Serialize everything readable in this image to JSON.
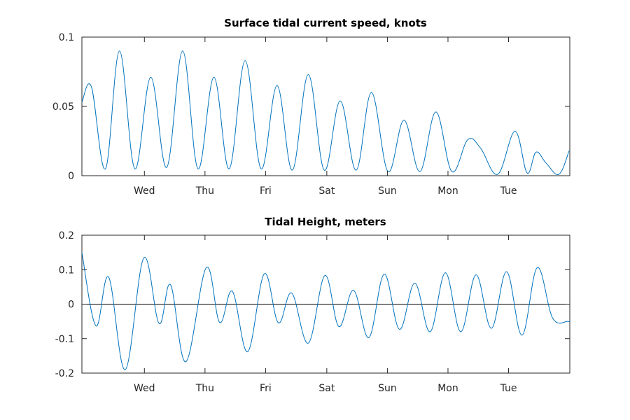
{
  "colors": {
    "series": "#0072bd",
    "axis": "#262626",
    "zero_line": "#000000"
  },
  "chart_data": [
    {
      "type": "line",
      "title": "Surface tidal current speed, knots",
      "xlabel": "",
      "ylabel": "",
      "xlim": [
        0,
        7.65
      ],
      "ylim": [
        0,
        0.1
      ],
      "x_ticks": [
        0.98,
        1.93,
        2.88,
        3.84,
        4.79,
        5.74,
        6.69
      ],
      "x_tick_labels": [
        "Wed",
        "Thu",
        "Fri",
        "Sat",
        "Sun",
        "Mon",
        "Tue"
      ],
      "y_ticks": [
        0,
        0.05,
        0.1
      ],
      "y_tick_labels": [
        "0",
        "0.05",
        "0.1"
      ],
      "grid": false,
      "series": [
        {
          "x": [
            0.0,
            0.15,
            0.37,
            0.59,
            0.83,
            1.08,
            1.33,
            1.58,
            1.82,
            2.07,
            2.31,
            2.56,
            2.81,
            3.06,
            3.3,
            3.55,
            3.8,
            4.05,
            4.3,
            4.54,
            4.8,
            5.05,
            5.3,
            5.55,
            5.8,
            6.05,
            6.25,
            6.52,
            6.79,
            6.98,
            7.12,
            7.28,
            7.48,
            7.64
          ],
          "y": [
            0.053,
            0.064,
            0.005,
            0.09,
            0.005,
            0.071,
            0.006,
            0.09,
            0.005,
            0.071,
            0.005,
            0.083,
            0.005,
            0.065,
            0.004,
            0.073,
            0.004,
            0.054,
            0.004,
            0.06,
            0.003,
            0.04,
            0.003,
            0.046,
            0.003,
            0.026,
            0.02,
            0.001,
            0.032,
            0.002,
            0.017,
            0.009,
            0.001,
            0.018
          ]
        }
      ]
    },
    {
      "type": "line",
      "title": "Tidal Height, meters",
      "xlabel": "",
      "ylabel": "",
      "xlim": [
        0,
        7.65
      ],
      "ylim": [
        -0.2,
        0.2
      ],
      "x_ticks": [
        0.98,
        1.93,
        2.88,
        3.84,
        4.79,
        5.74,
        6.69
      ],
      "x_tick_labels": [
        "Wed",
        "Thu",
        "Fri",
        "Sat",
        "Sun",
        "Mon",
        "Tue"
      ],
      "y_ticks": [
        -0.2,
        -0.1,
        0,
        0.1,
        0.2
      ],
      "y_tick_labels": [
        "-0.2",
        "-0.1",
        "0",
        "0.1",
        "0.2"
      ],
      "grid": false,
      "reference_line": 0,
      "series": [
        {
          "x": [
            0.0,
            0.22,
            0.42,
            0.68,
            0.97,
            1.21,
            1.39,
            1.63,
            1.95,
            2.16,
            2.36,
            2.6,
            2.86,
            3.08,
            3.29,
            3.55,
            3.81,
            4.03,
            4.26,
            4.5,
            4.74,
            4.98,
            5.22,
            5.46,
            5.7,
            5.94,
            6.18,
            6.42,
            6.66,
            6.9,
            7.14,
            7.38,
            7.62,
            7.65
          ],
          "y": [
            0.15,
            -0.063,
            0.078,
            -0.19,
            0.134,
            -0.056,
            0.056,
            -0.167,
            0.106,
            -0.053,
            0.037,
            -0.138,
            0.088,
            -0.054,
            0.032,
            -0.113,
            0.083,
            -0.065,
            0.04,
            -0.097,
            0.087,
            -0.073,
            0.061,
            -0.08,
            0.091,
            -0.08,
            0.085,
            -0.07,
            0.094,
            -0.09,
            0.106,
            -0.04,
            -0.05,
            -0.05
          ]
        }
      ]
    }
  ]
}
